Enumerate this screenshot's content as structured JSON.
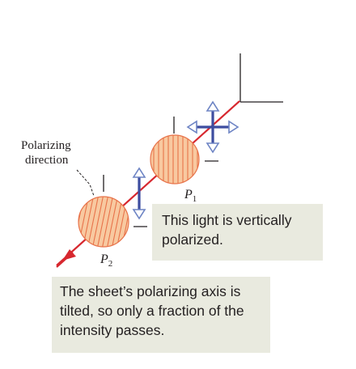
{
  "labels": {
    "polarizing_direction_line1": "Polarizing",
    "polarizing_direction_line2": "direction",
    "p1_letter": "P",
    "p1_sub": "1",
    "p2_letter": "P",
    "p2_sub": "2"
  },
  "captions": {
    "vertical": "This light is vertically polarized.",
    "tilted": "The sheet’s polarizing axis is tilted, so only a fraction of the intensity passes."
  },
  "colors": {
    "beam": "#d7282f",
    "disk_fill": "#f8c9a0",
    "disk_lines": "#e8734a",
    "arrow_blue": "#3d4da0",
    "arrow_outline": "#6d84c4",
    "caption_bg": "#e9eadf"
  }
}
